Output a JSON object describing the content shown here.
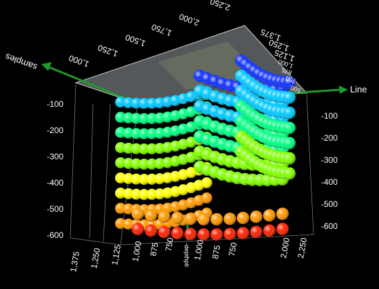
{
  "chart_data": {
    "type": "scatter",
    "title": "",
    "axes": {
      "line_label": "Line",
      "samples_label": "samples",
      "depth_label": "-depthpit"
    },
    "depth_ticks_left": [
      "-100",
      "-200",
      "-300",
      "-400",
      "-500",
      "-600"
    ],
    "depth_ticks_right": [
      "-100",
      "-200",
      "-300",
      "-400",
      "-500",
      "-600"
    ],
    "bottom_ticks_left": [
      "1,375",
      "1,250",
      "1,125",
      "1,000",
      "875",
      "750"
    ],
    "bottom_ticks_right": [
      "1,000",
      "875",
      "750",
      "2,000",
      "2,250"
    ],
    "top_ticks_samples": [
      "2,250",
      "2,000",
      "1,750",
      "1,500",
      "1,250",
      "1,000"
    ],
    "top_ticks_line": [
      "1,375",
      "1,250",
      "1,125",
      "1,000",
      "875",
      "750",
      "500"
    ],
    "color_scale": [
      "#1030ff",
      "#00c8ff",
      "#00ff80",
      "#80ff00",
      "#ffff00",
      "#ff9900",
      "#ff2000"
    ],
    "zlim": [
      -600,
      0
    ],
    "curtains": [
      {
        "name": "",
        "depths": [
          -100,
          -150,
          -200,
          -250,
          -300,
          -350,
          -400,
          -450,
          -500
        ]
      },
      {
        "name": "",
        "depths": [
          -40,
          -90,
          -140,
          -190,
          -240,
          -290,
          -340
        ]
      },
      {
        "name": "",
        "depths": [
          -30,
          -80,
          -130,
          -180,
          -230,
          -280,
          -330
        ]
      },
      {
        "name": "",
        "depths": [
          -540,
          -580
        ]
      }
    ]
  }
}
